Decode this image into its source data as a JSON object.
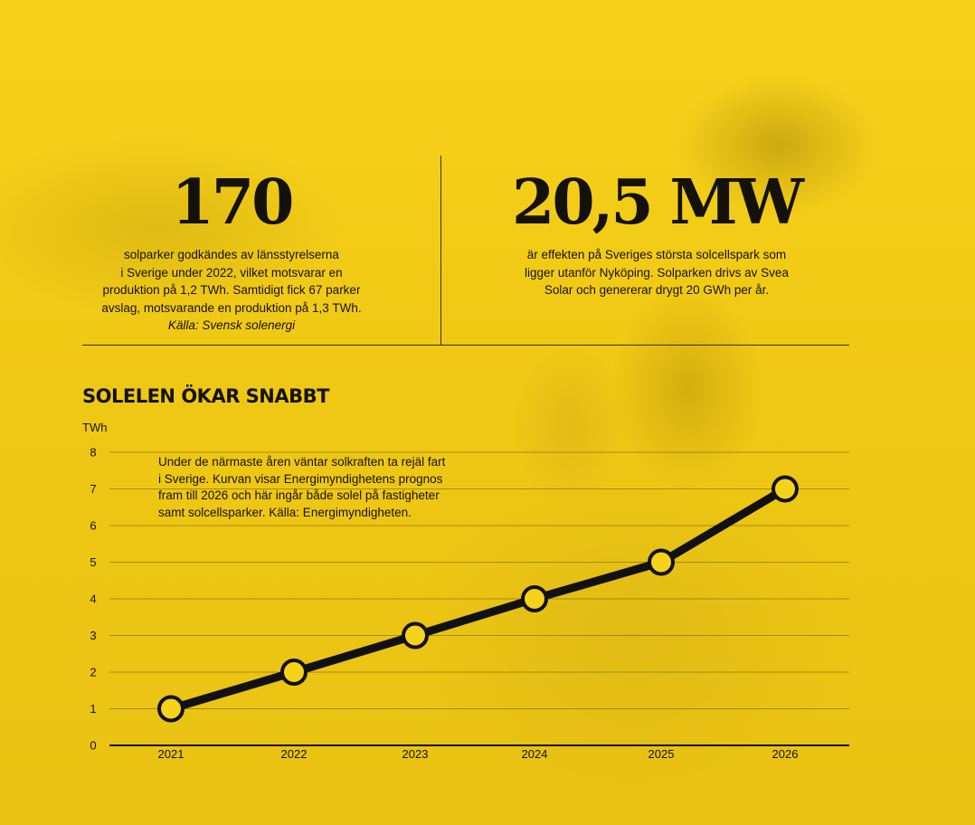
{
  "stats": [
    {
      "value": "170",
      "text_lines": [
        "solparker godkändes av länsstyrelserna",
        "i Sverige under 2022, vilket motsvarar en",
        "produktion på 1,2 TWh. Samtidigt fick 67 parker",
        "avslag, motsvarande en produktion på 1,3 TWh."
      ],
      "source": "Källa: Svensk solenergi"
    },
    {
      "value": "20,5 MW",
      "text_lines": [
        "är effekten på Sveriges största solcellspark som",
        "ligger utanför Nyköping. Solparken drivs av Svea",
        "Solar och genererar drygt 20 GWh per år."
      ]
    }
  ],
  "chart_heading": "SOLELEN ÖKAR SNABBT",
  "chart_note_lines": [
    "Under de närmaste åren väntar solkraften ta rejäl fart",
    "i Sverige. Kurvan visar Energimyndighetens prognos",
    "fram till 2026 och här ingår både solel på fastigheter",
    "samt solcellsparker. Källa: Energimyndigheten."
  ],
  "colors": {
    "background": "#f2cc16",
    "line": "#111111",
    "marker_fill": "#f6d21a",
    "grid": "#6b5a08"
  },
  "chart_data": {
    "type": "line",
    "ylabel": "TWh",
    "categories": [
      "2021",
      "2022",
      "2023",
      "2024",
      "2025",
      "2026"
    ],
    "series": [
      {
        "values": [
          1,
          2,
          3,
          4,
          5,
          7
        ]
      }
    ],
    "ylim": [
      0,
      8
    ],
    "yticks": [
      0,
      1,
      2,
      3,
      4,
      5,
      6,
      7,
      8
    ],
    "grid": true,
    "legend": "none"
  }
}
